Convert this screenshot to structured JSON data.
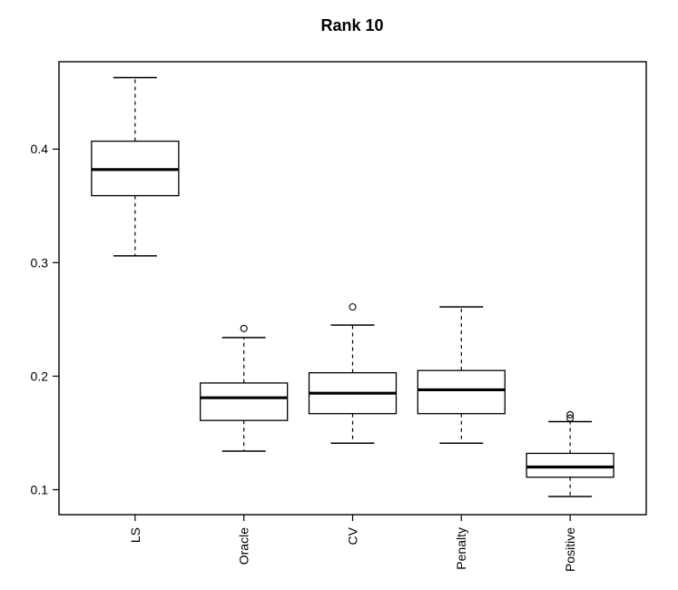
{
  "chart_data": {
    "type": "boxplot",
    "title": "Rank 10",
    "xlabel": "",
    "ylabel": "",
    "categories": [
      "LS",
      "Oracle",
      "CV",
      "Penalty",
      "Positive"
    ],
    "y_ticks": [
      "0.1",
      "0.2",
      "0.3",
      "0.4"
    ],
    "y_tick_values": [
      0.1,
      0.2,
      0.3,
      0.4
    ],
    "ylim": [
      0.078,
      0.477
    ],
    "grid": false,
    "legend": "none",
    "orientation": "vertical",
    "series": [
      {
        "name": "LS",
        "whisker_low": 0.306,
        "q1": 0.359,
        "median": 0.382,
        "q3": 0.407,
        "whisker_high": 0.463,
        "outliers": []
      },
      {
        "name": "Oracle",
        "whisker_low": 0.134,
        "q1": 0.161,
        "median": 0.181,
        "q3": 0.194,
        "whisker_high": 0.234,
        "outliers": [
          0.242
        ]
      },
      {
        "name": "CV",
        "whisker_low": 0.141,
        "q1": 0.167,
        "median": 0.185,
        "q3": 0.203,
        "whisker_high": 0.245,
        "outliers": [
          0.261
        ]
      },
      {
        "name": "Penalty",
        "whisker_low": 0.141,
        "q1": 0.167,
        "median": 0.188,
        "q3": 0.205,
        "whisker_high": 0.261,
        "outliers": []
      },
      {
        "name": "Positive",
        "whisker_low": 0.094,
        "q1": 0.111,
        "median": 0.12,
        "q3": 0.132,
        "whisker_high": 0.16,
        "outliers": [
          0.163,
          0.166
        ]
      }
    ],
    "colors": {
      "line": "#000000",
      "box_fill": "#ffffff",
      "background": "#ffffff",
      "text": "#000000"
    }
  }
}
